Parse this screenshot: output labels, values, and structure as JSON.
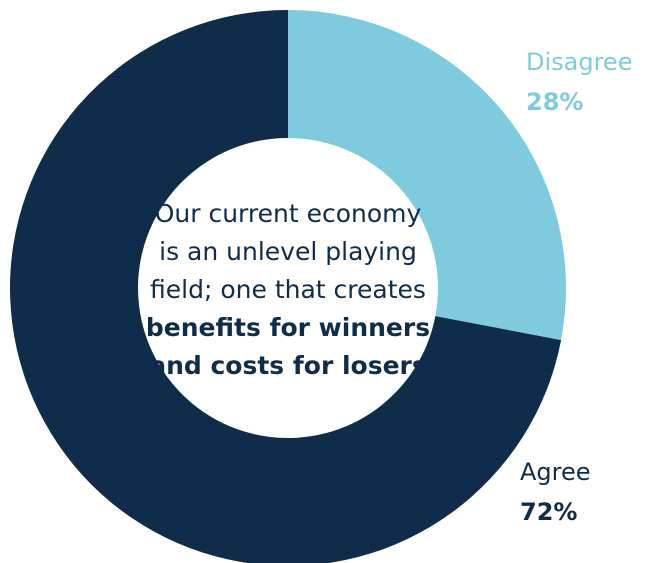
{
  "chart_data": {
    "type": "donut",
    "categories": [
      "Disagree",
      "Agree"
    ],
    "values": [
      28,
      72
    ],
    "value_labels": [
      "28%",
      "72%"
    ],
    "colors": [
      "#7ecbde",
      "#0f2d4a"
    ],
    "center_text": {
      "normal": [
        "Our current economy",
        "is an unlevel playing",
        "field; one that creates"
      ],
      "bold": [
        "benefits for winners",
        "and costs for losers"
      ]
    }
  }
}
